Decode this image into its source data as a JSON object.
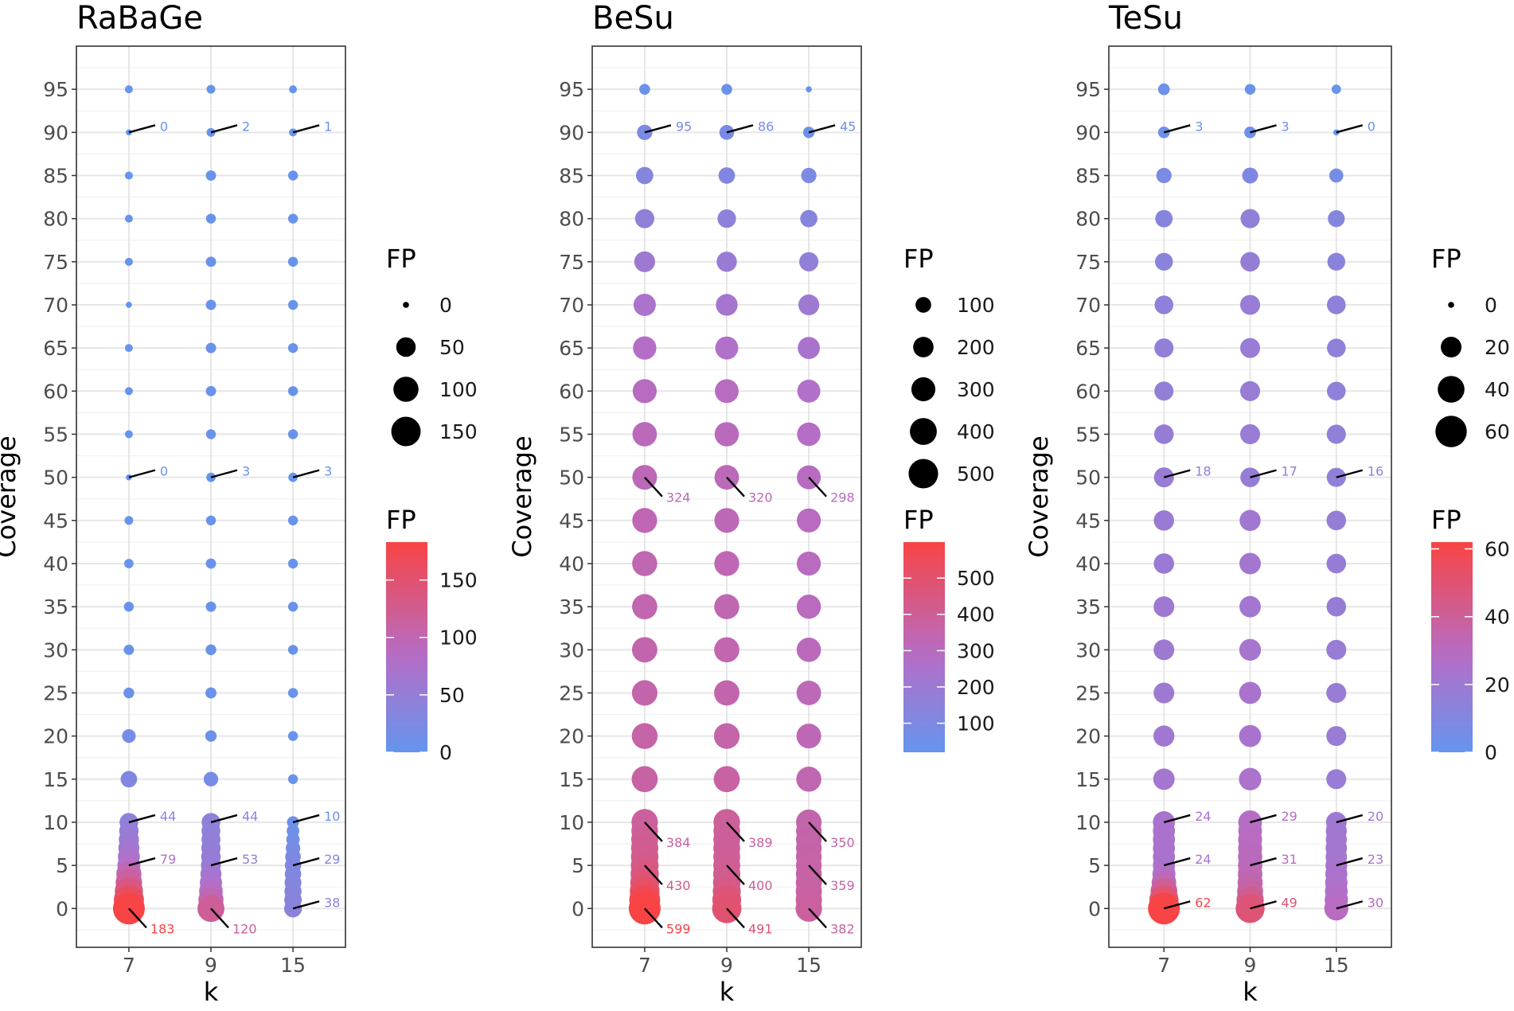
{
  "chart_data": [
    {
      "type": "scatter",
      "title": "RaBaGe",
      "xlabel": "k",
      "ylabel": "Coverage",
      "x_categories": [
        "7",
        "9",
        "15"
      ],
      "coverage": [
        0,
        1,
        2,
        3,
        4,
        5,
        6,
        7,
        8,
        9,
        10,
        15,
        20,
        25,
        30,
        35,
        40,
        45,
        50,
        55,
        60,
        65,
        70,
        75,
        80,
        85,
        90,
        95
      ],
      "y_ticks": [
        0,
        5,
        10,
        15,
        20,
        25,
        30,
        35,
        40,
        45,
        50,
        55,
        60,
        65,
        70,
        75,
        80,
        85,
        90,
        95
      ],
      "ylim": [
        -4.5,
        100
      ],
      "fp": {
        "7": [
          183,
          160,
          135,
          115,
          100,
          79,
          70,
          62,
          55,
          49,
          44,
          30,
          16,
          6,
          5,
          4,
          3,
          2,
          0,
          1,
          1,
          1,
          0,
          1,
          1,
          1,
          0,
          1
        ],
        "9": [
          120,
          100,
          85,
          72,
          62,
          53,
          50,
          48,
          46,
          45,
          44,
          20,
          8,
          7,
          6,
          5,
          5,
          4,
          3,
          4,
          5,
          5,
          5,
          5,
          4,
          5,
          2,
          2
        ],
        "15": [
          38,
          36,
          34,
          32,
          30,
          29,
          25,
          20,
          15,
          12,
          10,
          4,
          4,
          4,
          4,
          4,
          4,
          4,
          3,
          4,
          4,
          4,
          4,
          4,
          4,
          4,
          1,
          1
        ]
      },
      "annotations": [
        {
          "k": "7",
          "coverage": 0,
          "value": "183"
        },
        {
          "k": "9",
          "coverage": 0,
          "value": "120"
        },
        {
          "k": "15",
          "coverage": 0,
          "value": "38"
        },
        {
          "k": "7",
          "coverage": 5,
          "value": "79"
        },
        {
          "k": "9",
          "coverage": 5,
          "value": "53"
        },
        {
          "k": "15",
          "coverage": 5,
          "value": "29"
        },
        {
          "k": "7",
          "coverage": 10,
          "value": "44"
        },
        {
          "k": "9",
          "coverage": 10,
          "value": "44"
        },
        {
          "k": "15",
          "coverage": 10,
          "value": "10"
        },
        {
          "k": "7",
          "coverage": 50,
          "value": "0"
        },
        {
          "k": "9",
          "coverage": 50,
          "value": "3"
        },
        {
          "k": "15",
          "coverage": 50,
          "value": "3"
        },
        {
          "k": "7",
          "coverage": 90,
          "value": "0"
        },
        {
          "k": "9",
          "coverage": 90,
          "value": "2"
        },
        {
          "k": "15",
          "coverage": 90,
          "value": "1"
        }
      ],
      "size_legend": {
        "title": "FP",
        "values": [
          0,
          50,
          100,
          150
        ],
        "labels": [
          "0",
          "50",
          "100",
          "150"
        ]
      },
      "color_legend": {
        "title": "FP",
        "range": [
          0,
          183
        ],
        "ticks": [
          0,
          50,
          100,
          150
        ],
        "labels": [
          "0",
          "50",
          "100",
          "150"
        ]
      },
      "color_low": "#6495ED",
      "color_high": "#F84444"
    },
    {
      "type": "scatter",
      "title": "BeSu",
      "xlabel": "k",
      "ylabel": "Coverage",
      "x_categories": [
        "7",
        "9",
        "15"
      ],
      "coverage": [
        0,
        1,
        2,
        3,
        4,
        5,
        6,
        7,
        8,
        9,
        10,
        15,
        20,
        25,
        30,
        35,
        40,
        45,
        50,
        55,
        60,
        65,
        70,
        75,
        80,
        85,
        90,
        95
      ],
      "y_ticks": [
        0,
        5,
        10,
        15,
        20,
        25,
        30,
        35,
        40,
        45,
        50,
        55,
        60,
        65,
        70,
        75,
        80,
        85,
        90,
        95
      ],
      "ylim": [
        -4.5,
        100
      ],
      "fp": {
        "7": [
          599,
          560,
          510,
          470,
          450,
          430,
          420,
          410,
          400,
          390,
          384,
          370,
          360,
          350,
          345,
          340,
          335,
          330,
          324,
          315,
          300,
          280,
          250,
          210,
          170,
          130,
          95,
          40
        ],
        "9": [
          491,
          470,
          440,
          420,
          410,
          400,
          398,
          395,
          392,
          390,
          389,
          370,
          355,
          345,
          340,
          335,
          330,
          325,
          320,
          310,
          295,
          270,
          235,
          195,
          155,
          115,
          86,
          40
        ],
        "15": [
          382,
          378,
          372,
          366,
          362,
          359,
          357,
          355,
          353,
          351,
          350,
          335,
          325,
          318,
          312,
          307,
          302,
          300,
          298,
          285,
          270,
          245,
          210,
          170,
          130,
          95,
          45,
          20
        ]
      },
      "annotations": [
        {
          "k": "7",
          "coverage": 0,
          "value": "599"
        },
        {
          "k": "9",
          "coverage": 0,
          "value": "491"
        },
        {
          "k": "15",
          "coverage": 0,
          "value": "382"
        },
        {
          "k": "7",
          "coverage": 5,
          "value": "430"
        },
        {
          "k": "9",
          "coverage": 5,
          "value": "400"
        },
        {
          "k": "15",
          "coverage": 5,
          "value": "359"
        },
        {
          "k": "7",
          "coverage": 10,
          "value": "384"
        },
        {
          "k": "9",
          "coverage": 10,
          "value": "389"
        },
        {
          "k": "15",
          "coverage": 10,
          "value": "350"
        },
        {
          "k": "7",
          "coverage": 50,
          "value": "324"
        },
        {
          "k": "9",
          "coverage": 50,
          "value": "320"
        },
        {
          "k": "15",
          "coverage": 50,
          "value": "298"
        },
        {
          "k": "7",
          "coverage": 90,
          "value": "95"
        },
        {
          "k": "9",
          "coverage": 90,
          "value": "86"
        },
        {
          "k": "15",
          "coverage": 90,
          "value": "45"
        }
      ],
      "size_legend": {
        "title": "FP",
        "values": [
          100,
          200,
          300,
          400,
          500
        ],
        "labels": [
          "100",
          "200",
          "300",
          "400",
          "500"
        ]
      },
      "color_legend": {
        "title": "FP",
        "range": [
          20,
          599
        ],
        "ticks": [
          100,
          200,
          300,
          400,
          500
        ],
        "labels": [
          "100",
          "200",
          "300",
          "400",
          "500"
        ]
      },
      "color_low": "#6495ED",
      "color_high": "#F84444"
    },
    {
      "type": "scatter",
      "title": "TeSu",
      "xlabel": "k",
      "ylabel": "Coverage",
      "x_categories": [
        "7",
        "9",
        "15"
      ],
      "coverage": [
        0,
        1,
        2,
        3,
        4,
        5,
        6,
        7,
        8,
        9,
        10,
        15,
        20,
        25,
        30,
        35,
        40,
        45,
        50,
        55,
        60,
        65,
        70,
        75,
        80,
        85,
        90,
        95
      ],
      "y_ticks": [
        0,
        5,
        10,
        15,
        20,
        25,
        30,
        35,
        40,
        45,
        50,
        55,
        60,
        65,
        70,
        75,
        80,
        85,
        90,
        95
      ],
      "ylim": [
        -4.5,
        100
      ],
      "fp": {
        "7": [
          62,
          50,
          40,
          32,
          27,
          24,
          24,
          24,
          24,
          24,
          24,
          22,
          21,
          20,
          20,
          20,
          19,
          19,
          18,
          17,
          16,
          16,
          15,
          13,
          12,
          8,
          3,
          3
        ],
        "9": [
          49,
          42,
          37,
          34,
          32,
          31,
          31,
          30,
          30,
          29,
          29,
          25,
          24,
          24,
          23,
          22,
          22,
          21,
          17,
          18,
          18,
          18,
          18,
          17,
          16,
          9,
          3,
          2
        ],
        "15": [
          30,
          28,
          26,
          25,
          24,
          23,
          22,
          22,
          21,
          21,
          20,
          18,
          18,
          18,
          18,
          17,
          17,
          17,
          16,
          16,
          15,
          15,
          15,
          13,
          11,
          6,
          0,
          1
        ]
      },
      "annotations": [
        {
          "k": "7",
          "coverage": 0,
          "value": "62"
        },
        {
          "k": "9",
          "coverage": 0,
          "value": "49"
        },
        {
          "k": "15",
          "coverage": 0,
          "value": "30"
        },
        {
          "k": "7",
          "coverage": 5,
          "value": "24"
        },
        {
          "k": "9",
          "coverage": 5,
          "value": "31"
        },
        {
          "k": "15",
          "coverage": 5,
          "value": "23"
        },
        {
          "k": "7",
          "coverage": 10,
          "value": "24"
        },
        {
          "k": "9",
          "coverage": 10,
          "value": "29"
        },
        {
          "k": "15",
          "coverage": 10,
          "value": "20"
        },
        {
          "k": "7",
          "coverage": 50,
          "value": "18"
        },
        {
          "k": "9",
          "coverage": 50,
          "value": "17"
        },
        {
          "k": "15",
          "coverage": 50,
          "value": "16"
        },
        {
          "k": "7",
          "coverage": 90,
          "value": "3"
        },
        {
          "k": "9",
          "coverage": 90,
          "value": "3"
        },
        {
          "k": "15",
          "coverage": 90,
          "value": "0"
        }
      ],
      "size_legend": {
        "title": "FP",
        "values": [
          0,
          20,
          40,
          60
        ],
        "labels": [
          "0",
          "20",
          "40",
          "60"
        ]
      },
      "color_legend": {
        "title": "FP",
        "range": [
          0,
          62
        ],
        "ticks": [
          0,
          20,
          40,
          60
        ],
        "labels": [
          "0",
          "20",
          "40",
          "60"
        ]
      },
      "color_low": "#6495ED",
      "color_high": "#F84444"
    }
  ]
}
